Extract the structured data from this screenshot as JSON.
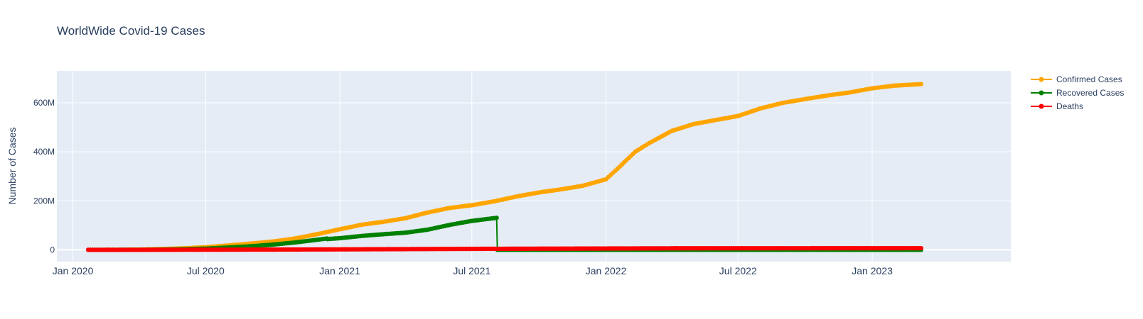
{
  "chart_data": {
    "type": "line",
    "title": "WorldWide Covid-19 Cases",
    "xlabel": "",
    "ylabel": "Number of Cases",
    "xlim": [
      "2019-12-10",
      "2023-07-10"
    ],
    "ylim": [
      -48000000,
      730000000
    ],
    "grid": true,
    "legend_position": "top-right",
    "x_ticks": [
      "2020-01-01",
      "2020-07-01",
      "2021-01-01",
      "2021-07-01",
      "2022-01-01",
      "2022-07-01",
      "2023-01-01"
    ],
    "x_tick_labels": [
      "Jan 2020",
      "Jul 2020",
      "Jan 2021",
      "Jul 2021",
      "Jan 2022",
      "Jul 2022",
      "Jan 2023"
    ],
    "y_ticks": [
      0,
      200000000,
      400000000,
      600000000
    ],
    "y_tick_labels": [
      "0",
      "200M",
      "400M",
      "600M"
    ],
    "colors": {
      "plot_bg": "#E5ECF6",
      "grid": "#ffffff",
      "text": "#2a3f5f"
    },
    "series": [
      {
        "name": "Confirmed Cases",
        "color": "#FFA500",
        "points": [
          [
            "2020-01-22",
            0.001
          ],
          [
            "2020-03-01",
            0.09
          ],
          [
            "2020-04-01",
            0.9
          ],
          [
            "2020-05-01",
            3.3
          ],
          [
            "2020-06-01",
            6.3
          ],
          [
            "2020-07-01",
            10.6
          ],
          [
            "2020-08-01",
            17.8
          ],
          [
            "2020-09-01",
            25.5
          ],
          [
            "2020-10-01",
            34.0
          ],
          [
            "2020-11-01",
            46.4
          ],
          [
            "2020-12-01",
            64.0
          ],
          [
            "2021-01-01",
            84.0
          ],
          [
            "2021-02-01",
            103.0
          ],
          [
            "2021-03-01",
            114.0
          ],
          [
            "2021-04-01",
            129.0
          ],
          [
            "2021-05-01",
            152.0
          ],
          [
            "2021-06-01",
            171.0
          ],
          [
            "2021-07-01",
            182.0
          ],
          [
            "2021-08-01",
            198.0
          ],
          [
            "2021-09-01",
            218.0
          ],
          [
            "2021-10-01",
            234.0
          ],
          [
            "2021-11-01",
            247.0
          ],
          [
            "2021-12-01",
            262.0
          ],
          [
            "2022-01-01",
            288.0
          ],
          [
            "2022-01-20",
            340.0
          ],
          [
            "2022-02-10",
            400.0
          ],
          [
            "2022-03-01",
            435.0
          ],
          [
            "2022-04-01",
            485.0
          ],
          [
            "2022-05-01",
            513.0
          ],
          [
            "2022-06-01",
            530.0
          ],
          [
            "2022-07-01",
            546.0
          ],
          [
            "2022-08-01",
            577.0
          ],
          [
            "2022-09-01",
            600.0
          ],
          [
            "2022-10-01",
            615.0
          ],
          [
            "2022-11-01",
            630.0
          ],
          [
            "2022-12-01",
            642.0
          ],
          [
            "2023-01-01",
            659.0
          ],
          [
            "2023-02-01",
            670.0
          ],
          [
            "2023-03-09",
            676.0
          ]
        ]
      },
      {
        "name": "Recovered Cases",
        "color": "#008000",
        "points": [
          [
            "2020-01-22",
            0.0
          ],
          [
            "2020-03-01",
            0.04
          ],
          [
            "2020-04-01",
            0.2
          ],
          [
            "2020-05-01",
            1.0
          ],
          [
            "2020-06-01",
            2.6
          ],
          [
            "2020-07-01",
            5.0
          ],
          [
            "2020-08-01",
            9.4
          ],
          [
            "2020-09-01",
            14.6
          ],
          [
            "2020-10-01",
            21.2
          ],
          [
            "2020-11-01",
            30.2
          ],
          [
            "2020-12-01",
            41.0
          ],
          [
            "2020-12-14",
            46.0
          ],
          [
            "2020-12-15",
            44.0
          ],
          [
            "2021-01-01",
            47.5
          ],
          [
            "2021-02-01",
            57.0
          ],
          [
            "2021-03-01",
            63.5
          ],
          [
            "2021-04-01",
            70.0
          ],
          [
            "2021-05-01",
            82.0
          ],
          [
            "2021-06-01",
            102.0
          ],
          [
            "2021-07-01",
            118.0
          ],
          [
            "2021-08-04",
            130.5
          ],
          [
            "2021-08-05",
            0.0
          ],
          [
            "2023-03-09",
            0.0
          ]
        ]
      },
      {
        "name": "Deaths",
        "color": "#FF0000",
        "points": [
          [
            "2020-01-22",
            0.0
          ],
          [
            "2020-04-01",
            0.05
          ],
          [
            "2020-07-01",
            0.51
          ],
          [
            "2020-10-01",
            1.02
          ],
          [
            "2021-01-01",
            1.83
          ],
          [
            "2021-04-01",
            2.85
          ],
          [
            "2021-07-01",
            3.96
          ],
          [
            "2021-10-01",
            4.76
          ],
          [
            "2022-01-01",
            5.44
          ],
          [
            "2022-04-01",
            6.2
          ],
          [
            "2022-07-01",
            6.36
          ],
          [
            "2022-10-01",
            6.55
          ],
          [
            "2023-01-01",
            6.7
          ],
          [
            "2023-03-09",
            6.88
          ]
        ]
      }
    ]
  }
}
